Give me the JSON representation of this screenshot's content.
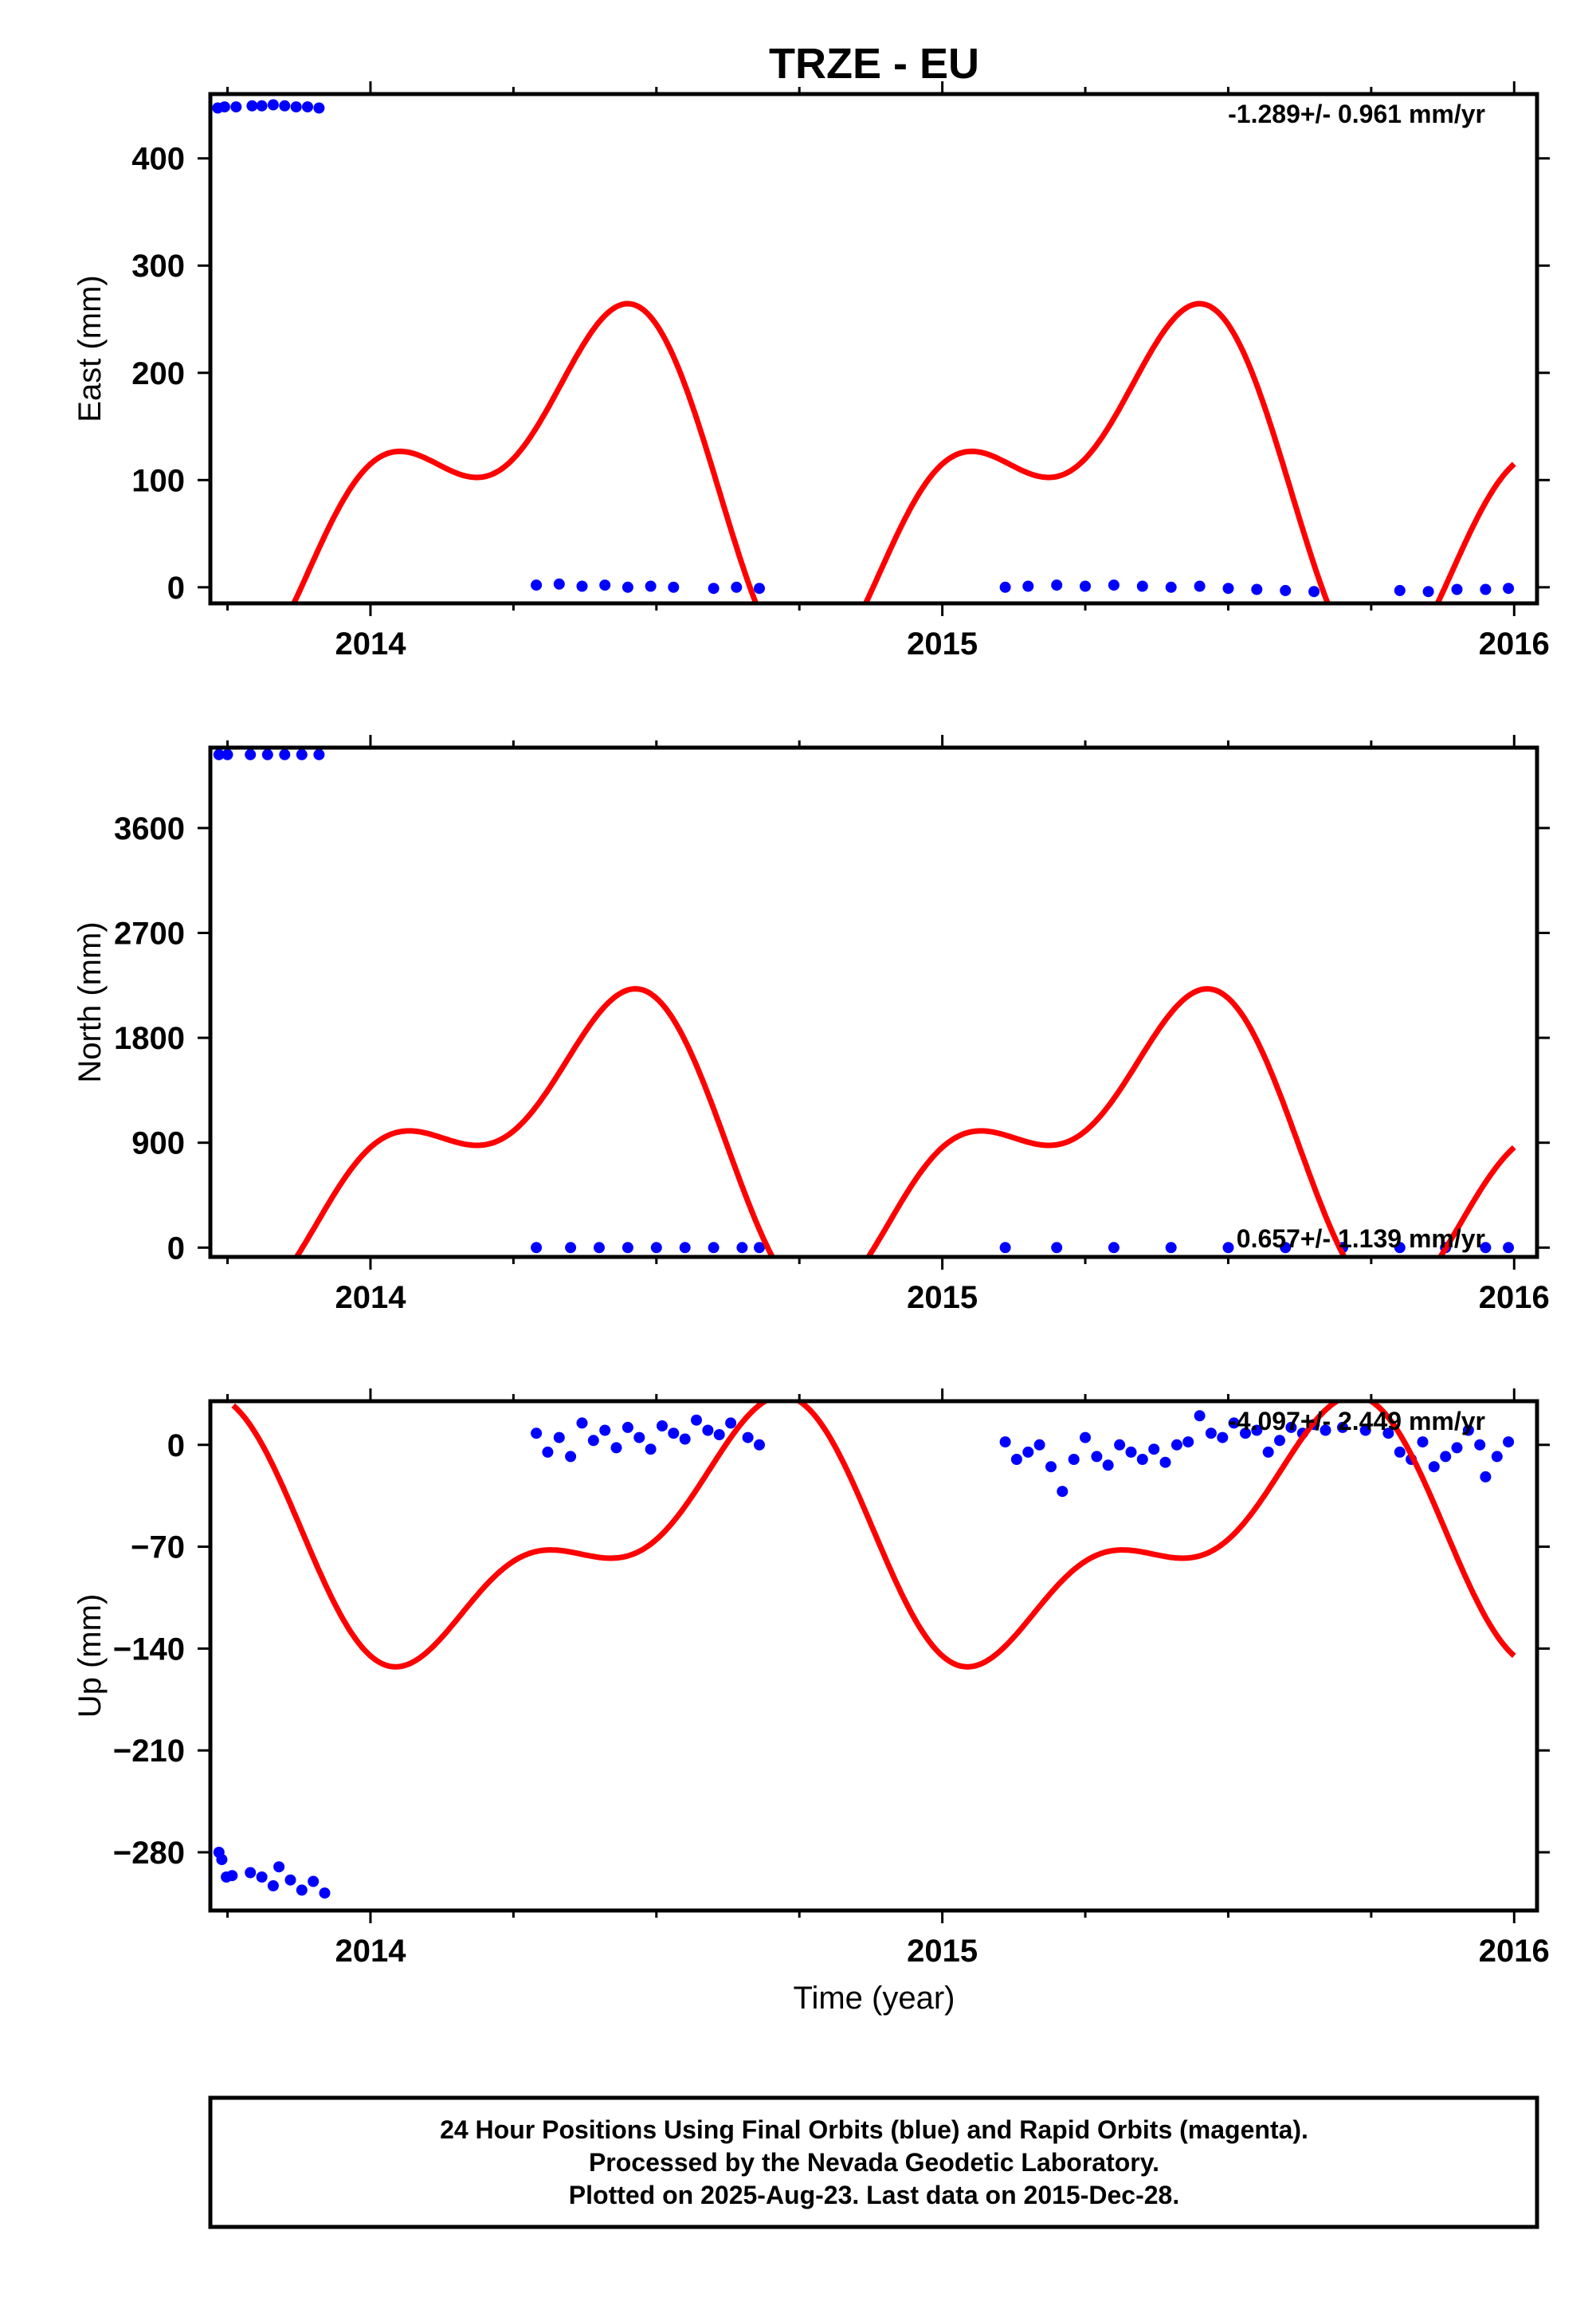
{
  "title": "TRZE - EU",
  "x_axis_label": "Time (year)",
  "footer": {
    "line1": "24 Hour Positions Using Final Orbits (blue) and Rapid Orbits (magenta).",
    "line2": "Processed by the Nevada Geodetic Laboratory.",
    "line3": "Plotted on 2025-Aug-23. Last data on 2015-Dec-28."
  },
  "colors": {
    "data": "#0000ff",
    "model": "#ff0000",
    "frame": "#000000"
  },
  "chart_data": [
    {
      "type": "scatter",
      "name": "east",
      "ylabel": "East (mm)",
      "rate_text": "-1.289+/- 0.961 mm/yr",
      "xlim": [
        2013.72,
        2016.04
      ],
      "ylim": [
        -15,
        460
      ],
      "yticks": [
        0,
        100,
        200,
        300,
        400
      ],
      "xticks": [
        2014,
        2015,
        2016
      ],
      "points": [
        [
          2013.733,
          447
        ],
        [
          2013.745,
          448
        ],
        [
          2013.765,
          448
        ],
        [
          2013.793,
          449
        ],
        [
          2013.81,
          449
        ],
        [
          2013.83,
          450
        ],
        [
          2013.85,
          449
        ],
        [
          2013.87,
          448
        ],
        [
          2013.89,
          448
        ],
        [
          2013.91,
          447
        ],
        [
          2014.29,
          2
        ],
        [
          2014.33,
          3
        ],
        [
          2014.37,
          1
        ],
        [
          2014.41,
          2
        ],
        [
          2014.45,
          0
        ],
        [
          2014.49,
          1
        ],
        [
          2014.53,
          0
        ],
        [
          2014.6,
          -1
        ],
        [
          2014.64,
          0
        ],
        [
          2014.68,
          -1
        ],
        [
          2015.11,
          0
        ],
        [
          2015.15,
          1
        ],
        [
          2015.2,
          2
        ],
        [
          2015.25,
          1
        ],
        [
          2015.3,
          2
        ],
        [
          2015.35,
          1
        ],
        [
          2015.4,
          0
        ],
        [
          2015.45,
          1
        ],
        [
          2015.5,
          -1
        ],
        [
          2015.55,
          -2
        ],
        [
          2015.6,
          -3
        ],
        [
          2015.65,
          -4
        ],
        [
          2015.8,
          -3
        ],
        [
          2015.85,
          -4
        ],
        [
          2015.9,
          -2
        ],
        [
          2015.95,
          -2
        ],
        [
          2015.99,
          -1
        ]
      ],
      "model": {
        "a1": 100,
        "b1": -65,
        "a2": -12,
        "b2": 80,
        "off": 100
      }
    },
    {
      "type": "scatter",
      "name": "north",
      "ylabel": "North (mm)",
      "rate_text": "0.657+/- 1.139 mm/yr",
      "xlim": [
        2013.72,
        2016.04
      ],
      "ylim": [
        -80,
        4290
      ],
      "yticks": [
        0,
        900,
        1800,
        2700,
        3600
      ],
      "xticks": [
        2014,
        2015,
        2016
      ],
      "points": [
        [
          2013.735,
          4230
        ],
        [
          2013.75,
          4230
        ],
        [
          2013.79,
          4230
        ],
        [
          2013.82,
          4230
        ],
        [
          2013.85,
          4230
        ],
        [
          2013.88,
          4230
        ],
        [
          2013.91,
          4230
        ],
        [
          2014.29,
          0
        ],
        [
          2014.35,
          0
        ],
        [
          2014.4,
          0
        ],
        [
          2014.45,
          0
        ],
        [
          2014.5,
          0
        ],
        [
          2014.55,
          0
        ],
        [
          2014.6,
          0
        ],
        [
          2014.65,
          0
        ],
        [
          2014.68,
          0
        ],
        [
          2015.11,
          0
        ],
        [
          2015.2,
          0
        ],
        [
          2015.3,
          0
        ],
        [
          2015.4,
          0
        ],
        [
          2015.5,
          0
        ],
        [
          2015.6,
          0
        ],
        [
          2015.7,
          0
        ],
        [
          2015.8,
          0
        ],
        [
          2015.88,
          0
        ],
        [
          2015.95,
          0
        ],
        [
          2015.99,
          0
        ]
      ],
      "model": {
        "a1": 700,
        "b1": -640,
        "a2": 0,
        "b2": 600,
        "off": 900
      }
    },
    {
      "type": "scatter",
      "name": "up",
      "ylabel": "Up (mm)",
      "rate_text": "-4.097+/- 2.449 mm/yr",
      "xlim": [
        2013.72,
        2016.04
      ],
      "ylim": [
        -320,
        30
      ],
      "yticks": [
        0,
        -70,
        -140,
        -210,
        -280
      ],
      "xticks": [
        2014,
        2015,
        2016
      ],
      "points": [
        [
          2013.735,
          -280
        ],
        [
          2013.74,
          -285
        ],
        [
          2013.748,
          -297
        ],
        [
          2013.758,
          -296
        ],
        [
          2013.79,
          -294
        ],
        [
          2013.81,
          -297
        ],
        [
          2013.83,
          -303
        ],
        [
          2013.84,
          -290
        ],
        [
          2013.86,
          -299
        ],
        [
          2013.88,
          -306
        ],
        [
          2013.9,
          -300
        ],
        [
          2013.92,
          -308
        ],
        [
          2014.29,
          8
        ],
        [
          2014.31,
          -5
        ],
        [
          2014.33,
          5
        ],
        [
          2014.35,
          -8
        ],
        [
          2014.37,
          15
        ],
        [
          2014.39,
          3
        ],
        [
          2014.41,
          10
        ],
        [
          2014.43,
          -2
        ],
        [
          2014.45,
          12
        ],
        [
          2014.47,
          5
        ],
        [
          2014.49,
          -3
        ],
        [
          2014.51,
          13
        ],
        [
          2014.53,
          8
        ],
        [
          2014.55,
          4
        ],
        [
          2014.57,
          17
        ],
        [
          2014.59,
          10
        ],
        [
          2014.61,
          7
        ],
        [
          2014.63,
          15
        ],
        [
          2014.66,
          5
        ],
        [
          2014.68,
          0
        ],
        [
          2015.11,
          2
        ],
        [
          2015.13,
          -10
        ],
        [
          2015.15,
          -5
        ],
        [
          2015.17,
          0
        ],
        [
          2015.19,
          -15
        ],
        [
          2015.21,
          -32
        ],
        [
          2015.23,
          -10
        ],
        [
          2015.25,
          5
        ],
        [
          2015.27,
          -8
        ],
        [
          2015.29,
          -14
        ],
        [
          2015.31,
          0
        ],
        [
          2015.33,
          -5
        ],
        [
          2015.35,
          -10
        ],
        [
          2015.37,
          -3
        ],
        [
          2015.39,
          -12
        ],
        [
          2015.41,
          0
        ],
        [
          2015.43,
          2
        ],
        [
          2015.45,
          20
        ],
        [
          2015.47,
          8
        ],
        [
          2015.49,
          5
        ],
        [
          2015.51,
          15
        ],
        [
          2015.53,
          8
        ],
        [
          2015.55,
          10
        ],
        [
          2015.57,
          -5
        ],
        [
          2015.59,
          3
        ],
        [
          2015.61,
          12
        ],
        [
          2015.63,
          8
        ],
        [
          2015.65,
          14
        ],
        [
          2015.67,
          10
        ],
        [
          2015.7,
          12
        ],
        [
          2015.74,
          10
        ],
        [
          2015.78,
          8
        ],
        [
          2015.8,
          -5
        ],
        [
          2015.82,
          -10
        ],
        [
          2015.84,
          2
        ],
        [
          2015.86,
          -15
        ],
        [
          2015.88,
          -8
        ],
        [
          2015.9,
          -2
        ],
        [
          2015.92,
          10
        ],
        [
          2015.94,
          0
        ],
        [
          2015.95,
          -22
        ],
        [
          2015.97,
          -8
        ],
        [
          2015.99,
          2
        ]
      ],
      "model": {
        "a1": -55,
        "b1": -40,
        "a2": 0,
        "b2": -40,
        "off": -65
      }
    }
  ]
}
